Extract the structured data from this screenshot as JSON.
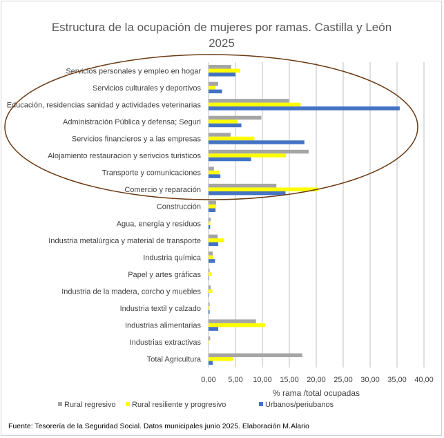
{
  "source_note": "Fuente: Tesorería de la Seguridad Social. Datos municipales junio 2025. Elaboración M.Alario",
  "colors": {
    "rural_regresivo": "#a5a5a5",
    "rural_resiliente": "#ffff00",
    "urbanos": "#4472c4",
    "grid": "#bfbfbf",
    "highlight_ellipse": "#6b3a12"
  },
  "chart_data": {
    "type": "bar",
    "orientation": "horizontal",
    "title_line1": "Estructura de la ocupación de mujeres por ramas. Castilla y León",
    "title_line2": "2025",
    "xlabel": "% rama /total ocupadas",
    "ylabel": "",
    "xlim": [
      0,
      40
    ],
    "xticks": [
      "0,00",
      "5,00",
      "10,00",
      "15,00",
      "20,00",
      "25,00",
      "30,00",
      "35,00",
      "40,00"
    ],
    "grid": true,
    "legend_position": "bottom",
    "categories": [
      "Servicios personales y empleo en hogar",
      "Servicios culturales y deportivos",
      "Educación, residencias sanidad y actividades veterinarias",
      "Administración Pública y defensa; Seguri",
      "Servicios financieros y a las empresas",
      "Alojamiento restauracion y serivcios turisticos",
      "Transporte y comunicaciones",
      "Comercio y reparación",
      "Construcción",
      "Agua, energía y residuos",
      "Industria metalúrgica y material de transporte",
      "Industria química",
      "Papel y artes gráficas",
      "Industria de la madera, corcho y muebles",
      "Industria textil y calzado",
      "Industrias alimentarias",
      "Industrias extractivas",
      "Total Agricultura"
    ],
    "series": [
      {
        "name": "Rural regresivo",
        "values": [
          4.2,
          1.8,
          14.9,
          9.8,
          4.1,
          18.6,
          1.0,
          12.6,
          1.4,
          0.4,
          1.7,
          0.8,
          0.2,
          0.4,
          0.2,
          8.8,
          0.3,
          17.4
        ]
      },
      {
        "name": "Rural resiliente y progresivo",
        "values": [
          5.9,
          1.2,
          17.1,
          5.3,
          8.5,
          14.4,
          2.0,
          20.4,
          1.4,
          0.3,
          2.9,
          0.8,
          0.6,
          0.7,
          0.2,
          10.5,
          0.1,
          4.5
        ]
      },
      {
        "name": "Urbanos/periubanos",
        "values": [
          5.0,
          2.5,
          35.5,
          6.1,
          17.8,
          7.9,
          2.2,
          14.3,
          1.3,
          0.3,
          1.8,
          1.2,
          0.1,
          0.1,
          0.2,
          1.8,
          0.0,
          0.8
        ]
      }
    ]
  }
}
